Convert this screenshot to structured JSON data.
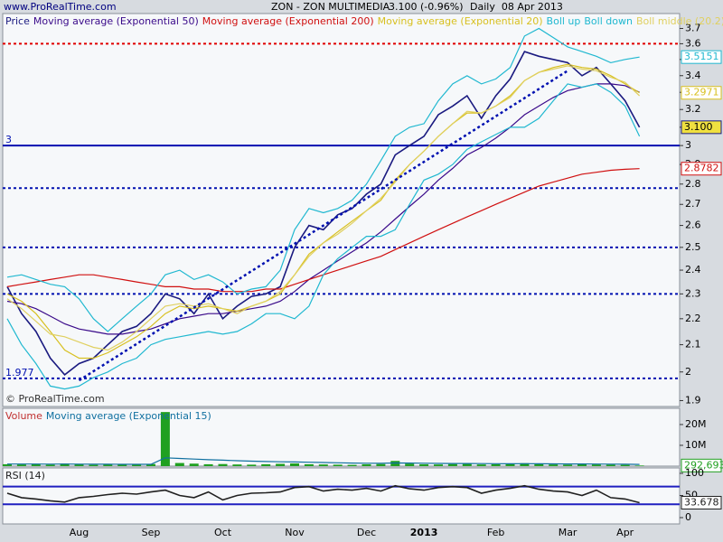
{
  "header": {
    "site": "www.ProRealTime.com",
    "symbol": "ZON - ZON MULTIMEDIA",
    "quote": "3.100 (-0.96%)",
    "period": "Daily  08 Apr 2013"
  },
  "chart_data": [
    {
      "type": "line",
      "log_y": true,
      "annotation": "© ProRealTime.com",
      "categories": [
        null,
        null,
        null,
        null,
        null,
        "Aug",
        null,
        null,
        null,
        null,
        "Sep",
        null,
        null,
        null,
        null,
        "Oct",
        null,
        null,
        null,
        null,
        "Nov",
        null,
        null,
        null,
        null,
        "Dec",
        null,
        null,
        null,
        "2013",
        null,
        null,
        null,
        null,
        "Feb",
        null,
        null,
        null,
        null,
        "Mar",
        null,
        null,
        null,
        "Apr",
        null
      ],
      "ylim": [
        1.88,
        3.8
      ],
      "yticks": [
        1.9,
        2,
        2.1,
        2.2,
        2.3,
        2.4,
        2.5,
        2.6,
        2.7,
        2.8,
        2.9,
        3,
        3.1,
        3.2,
        3.3,
        3.4,
        3.5,
        3.6,
        3.7
      ],
      "series": [
        {
          "name": "Price",
          "color": "#1a1a80",
          "last_label": "3.100",
          "values": [
            2.33,
            2.22,
            2.15,
            2.05,
            1.99,
            2.03,
            2.05,
            2.1,
            2.15,
            2.17,
            2.22,
            2.3,
            2.28,
            2.22,
            2.3,
            2.2,
            2.25,
            2.29,
            2.3,
            2.33,
            2.5,
            2.6,
            2.58,
            2.65,
            2.68,
            2.75,
            2.8,
            2.95,
            3,
            3.05,
            3.17,
            3.22,
            3.28,
            3.15,
            3.28,
            3.38,
            3.55,
            3.52,
            3.5,
            3.48,
            3.4,
            3.45,
            3.35,
            3.25,
            3.1
          ]
        },
        {
          "name": "Moving average (Exponential 50)",
          "color": "#3a0a8a",
          "values": [
            2.27,
            2.26,
            2.24,
            2.21,
            2.18,
            2.16,
            2.15,
            2.14,
            2.14,
            2.15,
            2.16,
            2.18,
            2.2,
            2.21,
            2.22,
            2.22,
            2.23,
            2.24,
            2.25,
            2.27,
            2.31,
            2.36,
            2.4,
            2.44,
            2.48,
            2.52,
            2.57,
            2.63,
            2.69,
            2.75,
            2.82,
            2.88,
            2.95,
            2.99,
            3.04,
            3.1,
            3.17,
            3.22,
            3.27,
            3.31,
            3.33,
            3.35,
            3.35,
            3.34,
            3.3
          ]
        },
        {
          "name": "Moving average (Exponential 200)",
          "color": "#d01010",
          "last_label": "2.8782",
          "values": [
            2.33,
            2.34,
            2.35,
            2.36,
            2.37,
            2.38,
            2.38,
            2.37,
            2.36,
            2.35,
            2.34,
            2.33,
            2.33,
            2.32,
            2.32,
            2.31,
            2.31,
            2.31,
            2.32,
            2.32,
            2.34,
            2.36,
            2.38,
            2.4,
            2.42,
            2.44,
            2.46,
            2.49,
            2.52,
            2.55,
            2.58,
            2.61,
            2.64,
            2.67,
            2.7,
            2.73,
            2.76,
            2.79,
            2.81,
            2.83,
            2.85,
            2.86,
            2.87,
            2.875,
            2.8782
          ]
        },
        {
          "name": "Moving average (Exponential 20)",
          "color": "#d8c020",
          "last_label": "3.2971",
          "values": [
            2.3,
            2.27,
            2.22,
            2.15,
            2.08,
            2.05,
            2.05,
            2.07,
            2.1,
            2.13,
            2.17,
            2.22,
            2.25,
            2.24,
            2.25,
            2.24,
            2.23,
            2.25,
            2.27,
            2.3,
            2.38,
            2.47,
            2.52,
            2.57,
            2.62,
            2.67,
            2.72,
            2.82,
            2.9,
            2.97,
            3.05,
            3.12,
            3.18,
            3.18,
            3.22,
            3.28,
            3.37,
            3.42,
            3.45,
            3.47,
            3.45,
            3.44,
            3.4,
            3.35,
            3.2971
          ]
        },
        {
          "name": "Boll up",
          "color": "#20b8d0",
          "last_label": "3.5151",
          "values": [
            2.37,
            2.38,
            2.36,
            2.34,
            2.33,
            2.28,
            2.2,
            2.15,
            2.2,
            2.25,
            2.3,
            2.38,
            2.4,
            2.36,
            2.38,
            2.35,
            2.3,
            2.32,
            2.33,
            2.4,
            2.58,
            2.68,
            2.66,
            2.68,
            2.72,
            2.8,
            2.92,
            3.05,
            3.1,
            3.12,
            3.25,
            3.35,
            3.4,
            3.35,
            3.38,
            3.45,
            3.65,
            3.7,
            3.64,
            3.58,
            3.55,
            3.52,
            3.48,
            3.5,
            3.5151
          ]
        },
        {
          "name": "Boll down",
          "color": "#20b8d0",
          "values": [
            2.2,
            2.1,
            2.03,
            1.95,
            1.94,
            1.95,
            1.98,
            2,
            2.03,
            2.05,
            2.1,
            2.12,
            2.13,
            2.14,
            2.15,
            2.14,
            2.15,
            2.18,
            2.22,
            2.22,
            2.2,
            2.25,
            2.38,
            2.45,
            2.5,
            2.55,
            2.55,
            2.58,
            2.7,
            2.82,
            2.85,
            2.9,
            2.98,
            3.02,
            3.06,
            3.1,
            3.1,
            3.15,
            3.25,
            3.35,
            3.33,
            3.35,
            3.3,
            3.22,
            3.05
          ]
        },
        {
          "name": "Boll middle (20.2)",
          "color": "#e0d060",
          "values": [
            2.28,
            2.24,
            2.19,
            2.14,
            2.13,
            2.11,
            2.09,
            2.08,
            2.11,
            2.15,
            2.2,
            2.25,
            2.26,
            2.25,
            2.26,
            2.24,
            2.22,
            2.25,
            2.27,
            2.31,
            2.38,
            2.46,
            2.52,
            2.56,
            2.61,
            2.67,
            2.73,
            2.81,
            2.9,
            2.97,
            3.05,
            3.12,
            3.19,
            3.18,
            3.22,
            3.27,
            3.37,
            3.42,
            3.44,
            3.46,
            3.44,
            3.43,
            3.39,
            3.36,
            3.28
          ]
        }
      ],
      "hlines": [
        {
          "value": 3.6,
          "color": "#e00000",
          "style": "dotted"
        },
        {
          "value": 3,
          "color": "#0010b0",
          "style": "solid",
          "show_label": true
        },
        {
          "value": 2.78,
          "color": "#0010b0",
          "style": "dotted"
        },
        {
          "value": 2.5,
          "color": "#0010b0",
          "style": "dotted"
        },
        {
          "value": 2.3,
          "color": "#0010b0",
          "style": "dotted"
        },
        {
          "value": 1.977,
          "color": "#0010b0",
          "style": "dotted",
          "show_label": true
        }
      ],
      "trendlines": [
        {
          "x": [
            5,
            39
          ],
          "y": [
            1.97,
            3.43
          ],
          "color": "#0010b0"
        }
      ]
    },
    {
      "type": "bar",
      "ylim": [
        0,
        27800000
      ],
      "yticks": [
        {
          "value": 10000000,
          "label": "10M"
        },
        {
          "value": 20000000,
          "label": "20M"
        }
      ],
      "series": [
        {
          "name": "Volume",
          "color": "#20a020",
          "text_color": "#c03030",
          "last_label": "292,693",
          "values": [
            900000,
            800000,
            1100000,
            700000,
            1200000,
            900000,
            600000,
            800000,
            700000,
            900000,
            1000000,
            26000000,
            1500000,
            1200000,
            900000,
            1000000,
            800000,
            700000,
            900000,
            1100000,
            1300000,
            900000,
            800000,
            700000,
            600000,
            900000,
            1000000,
            2500000,
            1200000,
            900000,
            800000,
            1000000,
            1100000,
            800000,
            900000,
            1000000,
            1400000,
            900000,
            800000,
            700000,
            900000,
            800000,
            700000,
            600000,
            292693
          ]
        },
        {
          "name": "Moving average (Exponential 15)",
          "style": "line",
          "color": "#1070a0",
          "values": [
            1000000,
            980000,
            1000000,
            950000,
            980000,
            970000,
            920000,
            900000,
            880000,
            880000,
            890000,
            4000000,
            3700000,
            3400000,
            3100000,
            2850000,
            2600000,
            2400000,
            2230000,
            2090000,
            1990000,
            1850000,
            1720000,
            1590000,
            1470000,
            1400000,
            1350000,
            1500000,
            1460000,
            1390000,
            1320000,
            1280000,
            1260000,
            1200000,
            1160000,
            1140000,
            1170000,
            1140000,
            1100000,
            1050000,
            1030000,
            1000000,
            960000,
            920000,
            840000
          ]
        }
      ]
    },
    {
      "type": "line",
      "ylim": [
        -14.3,
        112.2
      ],
      "yticks": [
        0,
        50,
        100
      ],
      "series": [
        {
          "name": "RSI (14)",
          "color": "#202020",
          "last_label": "33.678",
          "values": [
            55,
            45,
            42,
            38,
            35,
            45,
            48,
            52,
            55,
            53,
            58,
            62,
            50,
            45,
            58,
            40,
            50,
            55,
            56,
            58,
            68,
            70,
            60,
            64,
            62,
            66,
            60,
            72,
            65,
            62,
            68,
            70,
            68,
            55,
            62,
            66,
            72,
            64,
            60,
            58,
            50,
            62,
            45,
            42,
            33.678
          ]
        }
      ],
      "hlines": [
        {
          "value": 70,
          "color": "#2020c0",
          "style": "solid"
        },
        {
          "value": 30,
          "color": "#2020c0",
          "style": "solid"
        }
      ]
    }
  ]
}
